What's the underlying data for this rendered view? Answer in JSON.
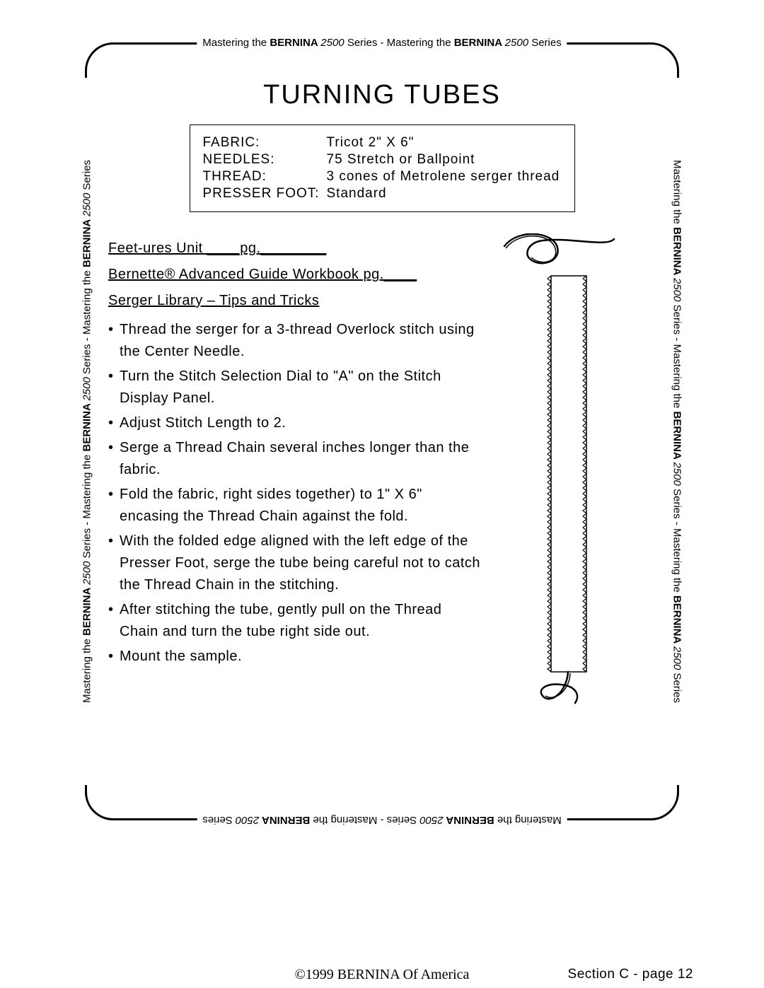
{
  "title": "TURNING TUBES",
  "border_text_segments": [
    {
      "text": "Mastering the ",
      "style": "normal"
    },
    {
      "text": "BERNINA ",
      "style": "bold"
    },
    {
      "text": "2500",
      "style": "italic"
    },
    {
      "text": " Series - Mastering the ",
      "style": "normal"
    },
    {
      "text": "BERNINA ",
      "style": "bold"
    },
    {
      "text": "2500",
      "style": "italic"
    },
    {
      "text": " Series",
      "style": "normal"
    }
  ],
  "border_text_segments_long": [
    {
      "text": "Mastering the ",
      "style": "normal"
    },
    {
      "text": "BERNINA ",
      "style": "bold"
    },
    {
      "text": "2500",
      "style": "italic"
    },
    {
      "text": " Series - Mastering the ",
      "style": "normal"
    },
    {
      "text": "BERNINA ",
      "style": "bold"
    },
    {
      "text": "2500",
      "style": "italic"
    },
    {
      "text": " Series - Mastering the ",
      "style": "normal"
    },
    {
      "text": "BERNINA ",
      "style": "bold"
    },
    {
      "text": "2500",
      "style": "italic"
    },
    {
      "text": " Series",
      "style": "normal"
    }
  ],
  "info_box": [
    {
      "label": "FABRIC:",
      "value": "Tricot  2\" X 6\""
    },
    {
      "label": "NEEDLES:",
      "value": "75 Stretch or Ballpoint"
    },
    {
      "label": "THREAD:",
      "value": "3 cones of Metrolene serger thread"
    },
    {
      "label": "PRESSER FOOT:",
      "value": "Standard"
    }
  ],
  "references": [
    "Feet-ures Unit ____pg.________",
    "Bernette® Advanced Guide Workbook pg.____",
    "Serger Library – Tips and Tricks"
  ],
  "bullets": [
    "Thread the serger for a 3-thread Overlock stitch using the Center Needle.",
    "Turn the Stitch Selection Dial to \"A\" on the Stitch Display Panel.",
    "Adjust Stitch Length to 2.",
    "Serge a Thread Chain several inches longer than the fabric.",
    "Fold the fabric, right sides together) to 1\" X 6\" encasing the Thread Chain against the fold.",
    "With the folded edge aligned with the left edge of the Presser Foot, serge the tube being careful not to catch the Thread Chain in the stitching.",
    "After stitching the tube, gently pull on the Thread Chain and turn the tube right side out.",
    "Mount the sample."
  ],
  "footer": {
    "copyright": "©1999 BERNINA Of America",
    "section": "Section C - page 12"
  },
  "colors": {
    "background": "#ffffff",
    "text": "#000000",
    "border": "#000000"
  },
  "illustration": {
    "description": "turned-tube-with-thread-chain",
    "tube_width": 50,
    "tube_height": 560,
    "rope_stroke": "#000000",
    "rope_width": 3
  }
}
